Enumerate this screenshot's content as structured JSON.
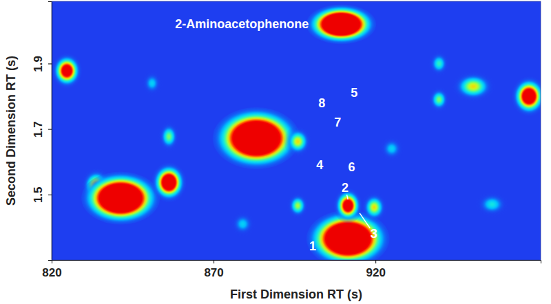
{
  "chart_data": {
    "type": "heatmap",
    "x_label": "First Dimension RT (s)",
    "y_label": "Second Dimension RT (s)",
    "xlim": [
      820,
      971
    ],
    "ylim": [
      1.3,
      2.09
    ],
    "xticks": [
      820,
      870,
      920
    ],
    "yticks": [
      1.5,
      1.7,
      1.9
    ],
    "grid": false,
    "peaks": [
      {
        "x": 909.4,
        "y": 2.02,
        "intensity": 3,
        "width": 8,
        "height": 0.045
      },
      {
        "x": 824.7,
        "y": 1.878,
        "intensity": 1.3,
        "width": 3.5,
        "height": 0.04
      },
      {
        "x": 833.8,
        "y": 1.527,
        "intensity": 0.8,
        "width": 3.5,
        "height": 0.04
      },
      {
        "x": 841.3,
        "y": 1.489,
        "intensity": 3,
        "width": 9,
        "height": 0.06
      },
      {
        "x": 856.2,
        "y": 1.537,
        "intensity": 1.6,
        "width": 4,
        "height": 0.045
      },
      {
        "x": 856.2,
        "y": 1.677,
        "intensity": 0.45,
        "width": 2.5,
        "height": 0.035
      },
      {
        "x": 883.2,
        "y": 1.672,
        "intensity": 3,
        "width": 10,
        "height": 0.07
      },
      {
        "x": 896,
        "y": 1.662,
        "intensity": 0.6,
        "width": 3.2,
        "height": 0.035
      },
      {
        "x": 911.5,
        "y": 1.365,
        "intensity": 3,
        "width": 9.5,
        "height": 0.065
      },
      {
        "x": 911.5,
        "y": 1.466,
        "intensity": 1.3,
        "width": 3.3,
        "height": 0.04
      },
      {
        "x": 919.6,
        "y": 1.461,
        "intensity": 0.6,
        "width": 3,
        "height": 0.035
      },
      {
        "x": 896,
        "y": 1.466,
        "intensity": 0.5,
        "width": 2.5,
        "height": 0.03
      },
      {
        "x": 967.4,
        "y": 1.8,
        "intensity": 1.5,
        "width": 4,
        "height": 0.045
      },
      {
        "x": 950.2,
        "y": 1.83,
        "intensity": 0.6,
        "width": 5,
        "height": 0.035
      },
      {
        "x": 939.6,
        "y": 1.79,
        "intensity": 0.45,
        "width": 2.5,
        "height": 0.03
      },
      {
        "x": 939.6,
        "y": 1.9,
        "intensity": 0.35,
        "width": 2.5,
        "height": 0.03
      },
      {
        "x": 851,
        "y": 1.84,
        "intensity": 0.25,
        "width": 2.5,
        "height": 0.03
      },
      {
        "x": 879,
        "y": 1.41,
        "intensity": 0.25,
        "width": 3,
        "height": 0.03
      },
      {
        "x": 956,
        "y": 1.47,
        "intensity": 0.3,
        "width": 4,
        "height": 0.03
      },
      {
        "x": 925,
        "y": 1.64,
        "intensity": 0.25,
        "width": 3,
        "height": 0.03
      }
    ],
    "annotations": [
      {
        "text": "2-Aminoacetophenone",
        "x": 899.4,
        "y": 2.02
      },
      {
        "text": "1",
        "x": 900.6,
        "y": 1.343
      },
      {
        "text": "2",
        "x": 910.6,
        "y": 1.52,
        "arrow": [
          911.5,
          1.485
        ]
      },
      {
        "text": "3",
        "x": 919.5,
        "y": 1.38,
        "arrow": [
          915.1,
          1.443
        ]
      },
      {
        "text": "4",
        "x": 902.8,
        "y": 1.589
      },
      {
        "text": "5",
        "x": 913.4,
        "y": 1.81
      },
      {
        "text": "6",
        "x": 912.6,
        "y": 1.583
      },
      {
        "text": "7",
        "x": 908.3,
        "y": 1.72
      },
      {
        "text": "8",
        "x": 903.4,
        "y": 1.779
      }
    ]
  }
}
